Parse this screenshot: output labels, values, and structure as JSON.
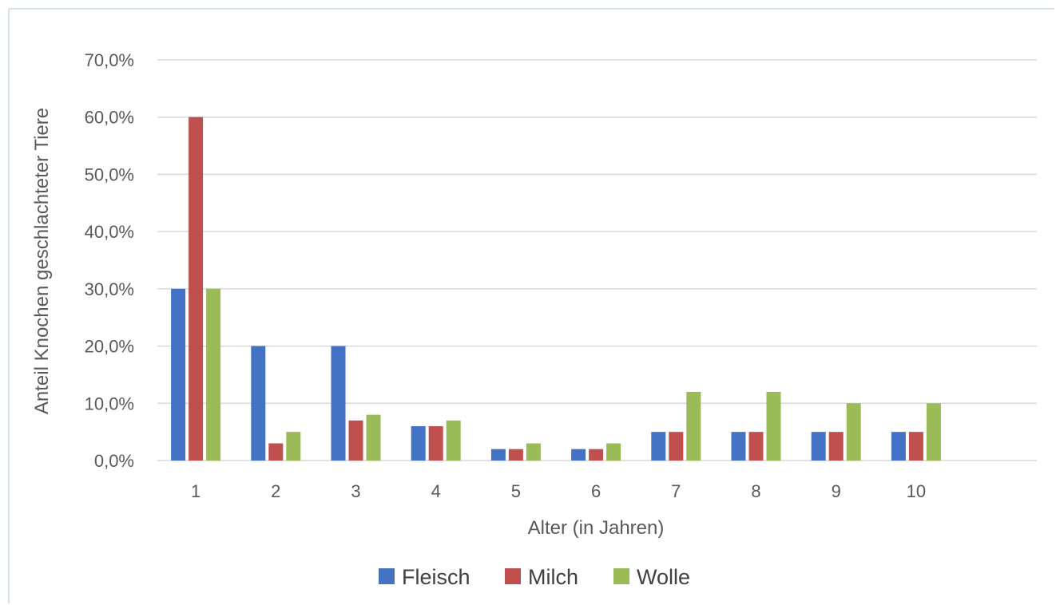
{
  "chart_data": {
    "type": "bar",
    "title": "",
    "xlabel": "Alter (in Jahren)",
    "ylabel": "Anteil Knochen geschlachteter Tiere",
    "categories": [
      "1",
      "2",
      "3",
      "4",
      "5",
      "6",
      "7",
      "8",
      "9",
      "10"
    ],
    "series": [
      {
        "name": "Fleisch",
        "color": "#4472c4",
        "values": [
          30,
          20,
          20,
          6,
          2,
          2,
          5,
          5,
          5,
          5
        ]
      },
      {
        "name": "Milch",
        "color": "#c0504d",
        "values": [
          60,
          3,
          7,
          6,
          2,
          2,
          5,
          5,
          5,
          5
        ]
      },
      {
        "name": "Wolle",
        "color": "#9bbb59",
        "values": [
          30,
          5,
          8,
          7,
          3,
          3,
          12,
          12,
          10,
          10
        ]
      }
    ],
    "ylim": [
      0,
      70
    ],
    "yticks": [
      "0,0%",
      "10,0%",
      "20,0%",
      "30,0%",
      "40,0%",
      "50,0%",
      "60,0%",
      "70,0%"
    ],
    "grid": true,
    "legend_position": "bottom",
    "gridline_color": "#d9d9d9",
    "text_color": "#595959"
  }
}
